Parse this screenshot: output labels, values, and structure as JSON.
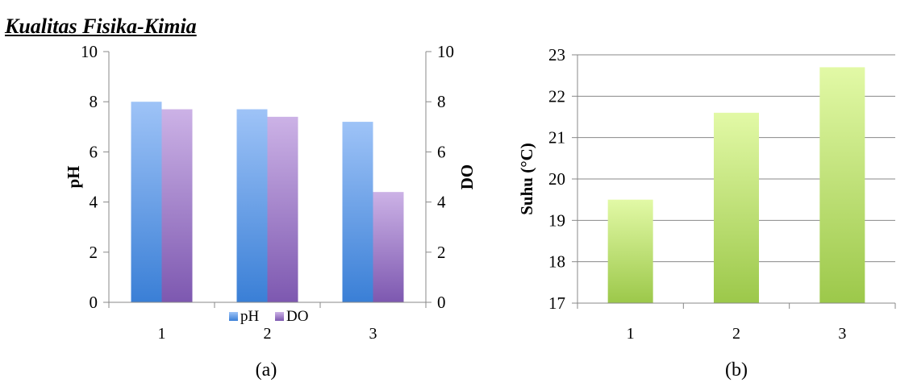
{
  "heading": "Kualitas Fisika-Kimia",
  "chart_data": [
    {
      "type": "bar",
      "caption": "(a)",
      "categories": [
        "1",
        "2",
        "3"
      ],
      "series": [
        {
          "name": "pH",
          "values": [
            8.0,
            7.7,
            7.2
          ],
          "axis": "left",
          "color": "#6f9ee6"
        },
        {
          "name": "DO",
          "values": [
            7.7,
            7.4,
            4.4
          ],
          "axis": "right",
          "color": "#9b78c4"
        }
      ],
      "ylabel": "pH",
      "y2label": "DO",
      "ylim": [
        0,
        10
      ],
      "y2lim": [
        0,
        10
      ],
      "yticks": [
        0,
        2,
        4,
        6,
        8,
        10
      ],
      "y2ticks": [
        0,
        2,
        4,
        6,
        8,
        10
      ],
      "legend": "bottom-center",
      "grid": false
    },
    {
      "type": "bar",
      "caption": "(b)",
      "categories": [
        "1",
        "2",
        "3"
      ],
      "series": [
        {
          "values": [
            19.5,
            21.6,
            22.7
          ],
          "color": "#9fcf5a"
        }
      ],
      "ylabel": "Suhu (°C)",
      "ylim": [
        17,
        23
      ],
      "yticks": [
        17,
        18,
        19,
        20,
        21,
        22,
        23
      ],
      "legend": "none",
      "grid": true
    }
  ]
}
